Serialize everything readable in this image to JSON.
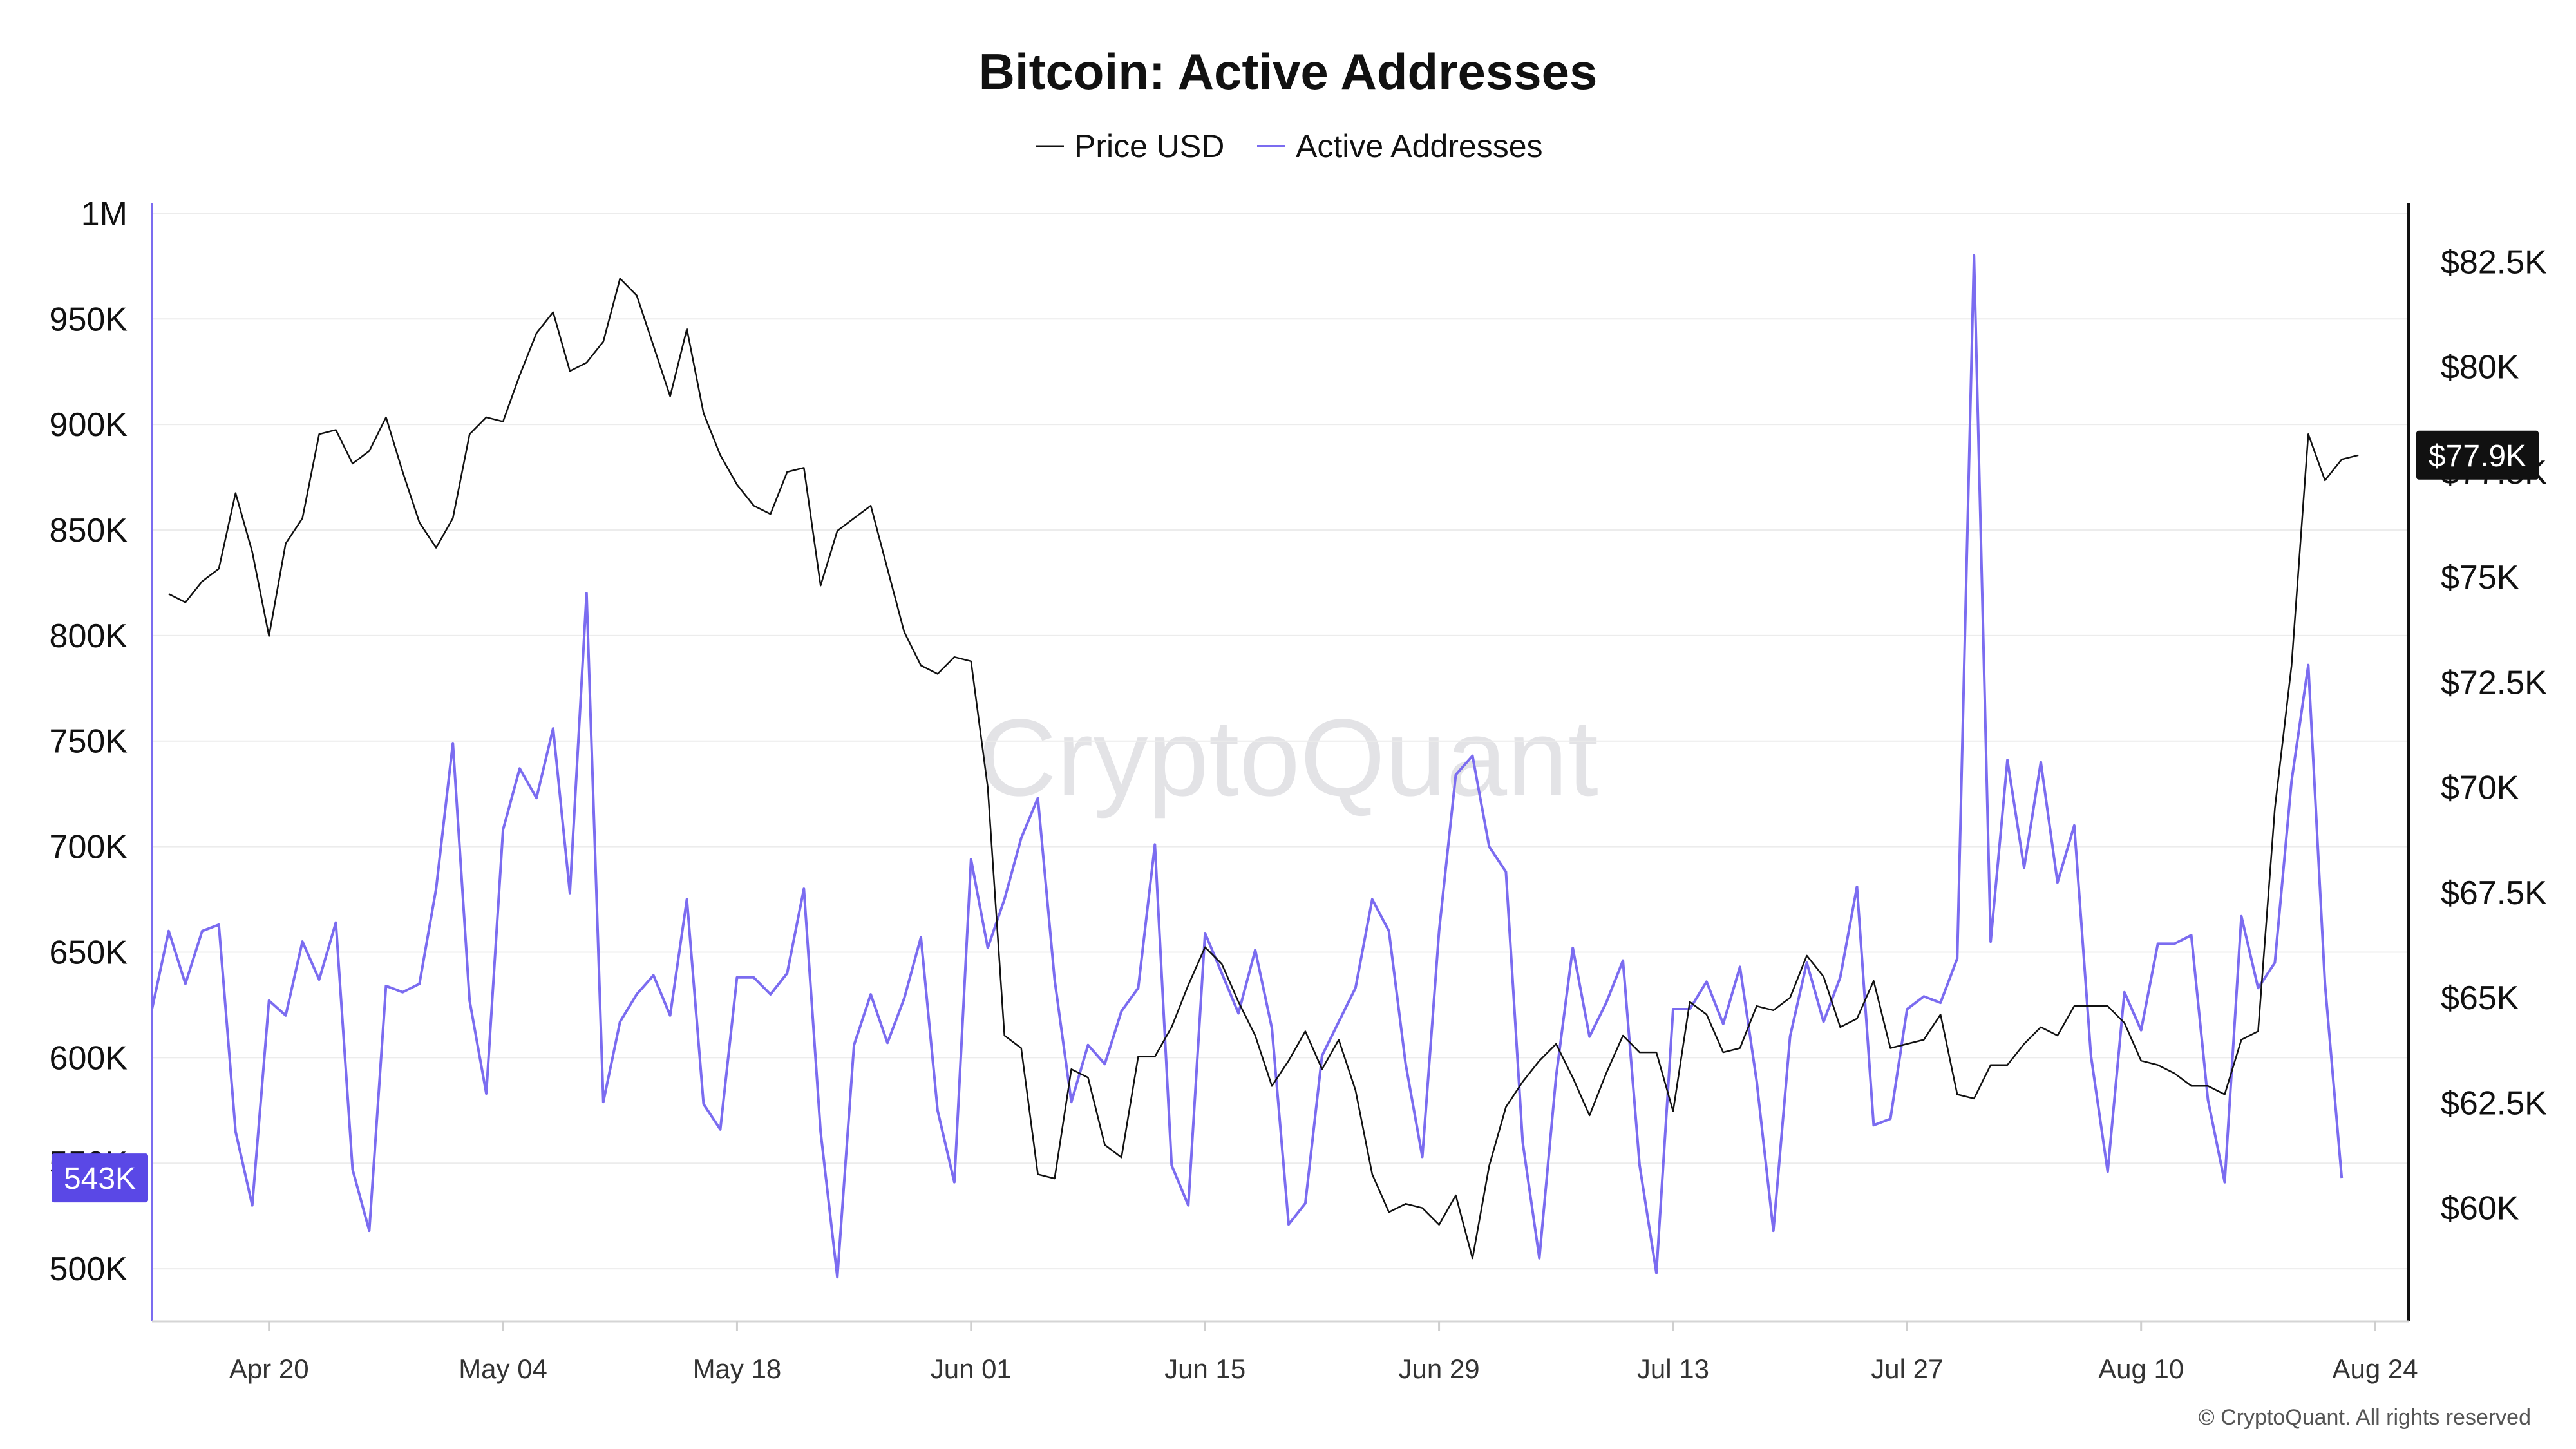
{
  "chart_data": {
    "type": "line",
    "title": "Bitcoin: Active Addresses",
    "legend": [
      "Price USD",
      "Active Addresses"
    ],
    "legend_placement": "top-center",
    "watermark": "CryptoQuant",
    "footer": "© CryptoQuant. All rights reserved",
    "colors": {
      "price": "#111111",
      "active": "#7b6cf0",
      "badge_active": "#5a48e6",
      "badge_price": "#111111",
      "grid": "#ececec"
    },
    "x_ticks": [
      "Apr 20",
      "May 04",
      "May 18",
      "Jun 01",
      "Jun 15",
      "Jun 29",
      "Jul 13",
      "Jul 27",
      "Aug 10",
      "Aug 24"
    ],
    "x_range": [
      "2024-04-13",
      "2024-08-26"
    ],
    "y_left": {
      "ylim": [
        475000,
        1005000
      ],
      "ticks": [
        500000,
        550000,
        600000,
        650000,
        700000,
        750000,
        800000,
        850000,
        900000,
        950000,
        1000000
      ],
      "tick_labels": [
        "500K",
        "550K",
        "600K",
        "650K",
        "700K",
        "750K",
        "800K",
        "850K",
        "900K",
        "950K",
        "1M"
      ]
    },
    "y_right": {
      "ylim": [
        57300,
        83900
      ],
      "ticks": [
        60000,
        62500,
        65000,
        67500,
        70000,
        72500,
        75000,
        77500,
        80000,
        82500
      ],
      "tick_labels": [
        "$60K",
        "$62.5K",
        "$65K",
        "$67.5K",
        "$70K",
        "$72.5K",
        "$75K",
        "$77.5K",
        "$80K",
        "$82.5K"
      ]
    },
    "current": {
      "active_label": "543K",
      "active_value": 543000,
      "price_label": "$77.9K",
      "price_value": 77900
    },
    "series": [
      {
        "name": "Price USD",
        "axis": "right",
        "x_start": "2024-04-14",
        "values": [
          74600,
          74400,
          74900,
          75200,
          77000,
          75600,
          73600,
          75800,
          76400,
          78400,
          78500,
          77700,
          78000,
          78800,
          77500,
          76300,
          75700,
          76400,
          78400,
          78800,
          78700,
          79800,
          80800,
          81300,
          79900,
          80100,
          80600,
          82100,
          81700,
          80500,
          79300,
          80900,
          78900,
          77900,
          77200,
          76700,
          76500,
          77500,
          77600,
          74800,
          76100,
          76400,
          76700,
          75200,
          73700,
          72900,
          72700,
          73100,
          73000,
          70000,
          64100,
          63800,
          60800,
          60700,
          63300,
          63100,
          61500,
          61200,
          63600,
          63600,
          64300,
          65300,
          66200,
          65800,
          64900,
          64100,
          62900,
          63500,
          64200,
          63300,
          64000,
          62800,
          60800,
          59900,
          60100,
          60000,
          59600,
          60300,
          58800,
          61000,
          62400,
          63000,
          63500,
          63900,
          63100,
          62200,
          63200,
          64100,
          63700,
          63700,
          62300,
          64900,
          64600,
          63700,
          63800,
          64800,
          64700,
          65000,
          66000,
          65500,
          64300,
          64500,
          65400,
          63800,
          63900,
          64000,
          64600,
          62700,
          62600,
          63400,
          63400,
          63900,
          64300,
          64100,
          64800,
          64800,
          64800,
          64400,
          63500,
          63400,
          63200,
          62900,
          62900,
          62700,
          64000,
          64200,
          69500,
          72900,
          78400,
          77300,
          77800,
          77900
        ]
      },
      {
        "name": "Active Addresses",
        "axis": "left",
        "x_start": "2024-04-13",
        "values": [
          623000,
          660000,
          635000,
          660000,
          663000,
          565000,
          530000,
          627000,
          620000,
          655000,
          637000,
          664000,
          547000,
          518000,
          634000,
          631000,
          635000,
          680000,
          749000,
          627000,
          583000,
          708000,
          737000,
          723000,
          756000,
          678000,
          820000,
          579000,
          617000,
          630000,
          639000,
          620000,
          675000,
          578000,
          566000,
          638000,
          638000,
          630000,
          640000,
          680000,
          565000,
          496000,
          606000,
          630000,
          607000,
          628000,
          657000,
          575000,
          541000,
          694000,
          652000,
          675000,
          704000,
          723000,
          637000,
          579000,
          606000,
          597000,
          622000,
          633000,
          701000,
          549000,
          530000,
          659000,
          640000,
          621000,
          651000,
          614000,
          521000,
          531000,
          601000,
          617000,
          633000,
          675000,
          660000,
          597000,
          553000,
          660000,
          734000,
          743000,
          700000,
          688000,
          560000,
          505000,
          591000,
          652000,
          610000,
          626000,
          646000,
          549000,
          498000,
          623000,
          623000,
          636000,
          616000,
          643000,
          589000,
          518000,
          610000,
          645000,
          617000,
          638000,
          681000,
          568000,
          571000,
          623000,
          629000,
          626000,
          647000,
          980000,
          655000,
          741000,
          690000,
          740000,
          683000,
          710000,
          601000,
          546000,
          631000,
          613000,
          654000,
          654000,
          658000,
          580000,
          541000,
          667000,
          633000,
          645000,
          731000,
          786000,
          635000,
          543000
        ]
      }
    ]
  }
}
